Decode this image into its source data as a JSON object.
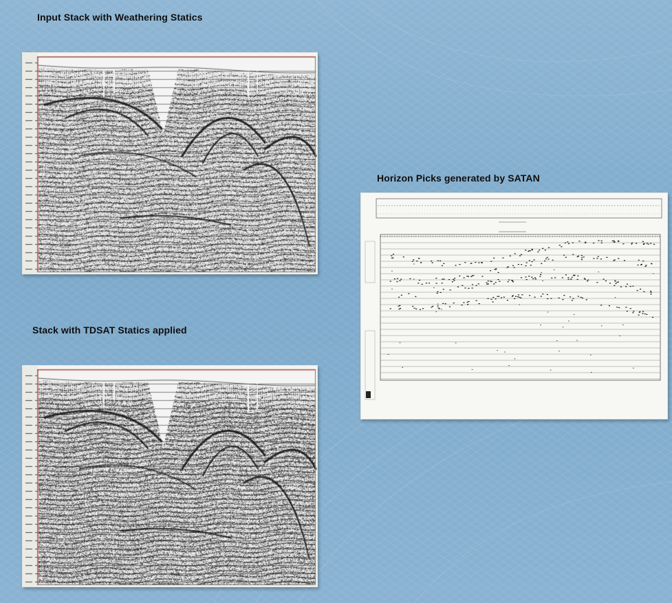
{
  "slide": {
    "titles": {
      "top_left": "Input Stack with Weathering Statics",
      "bottom_left": "Stack with TDSAT Statics applied",
      "right": "Horizon Picks generated by SATAN"
    },
    "colors": {
      "background": "#80acd0",
      "panel_paper": "#f7f7f3",
      "seismic_ink": "#2a2a2a",
      "title_text": "#0d0d0d"
    }
  },
  "panels": {
    "input_stack": {
      "name": "input-stack-seismic-section",
      "content": "seismic-section-image"
    },
    "tdsat_stack": {
      "name": "tdsat-stack-seismic-section",
      "content": "seismic-section-image"
    },
    "horizon_picks": {
      "name": "horizon-picks-plot",
      "content": "horizon-picks-image"
    }
  }
}
